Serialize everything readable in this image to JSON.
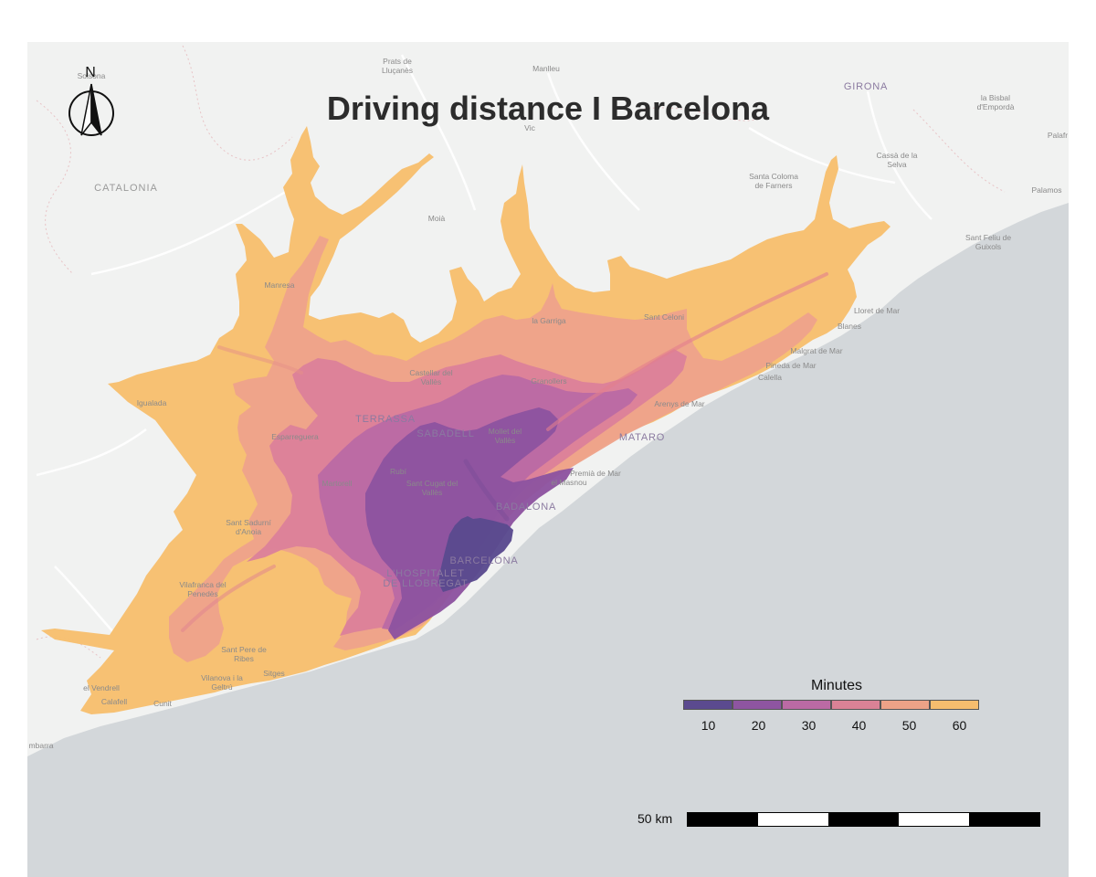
{
  "map": {
    "title": "Driving distance I Barcelona",
    "north_label": "N",
    "places": [
      {
        "name": "Solsona",
        "class": "small"
      },
      {
        "name": "Prats de",
        "class": "small"
      },
      {
        "name": "Lluçanès",
        "class": "small"
      },
      {
        "name": "Manlleu",
        "class": "small"
      },
      {
        "name": "Vic",
        "class": "small"
      },
      {
        "name": "GIRONA",
        "class": "city"
      },
      {
        "name": "la Bisbal",
        "class": "small"
      },
      {
        "name": "d'Empordà",
        "class": "small"
      },
      {
        "name": "Palafr",
        "class": "small"
      },
      {
        "name": "CATALONIA",
        "class": "region"
      },
      {
        "name": "Cassà de la",
        "class": "small"
      },
      {
        "name": "Selva",
        "class": "small"
      },
      {
        "name": "Santa Coloma",
        "class": "small"
      },
      {
        "name": "de Farners",
        "class": "small"
      },
      {
        "name": "Palamos",
        "class": "small"
      },
      {
        "name": "Moià",
        "class": "small"
      },
      {
        "name": "Sant Feliu de",
        "class": "small"
      },
      {
        "name": "Guixols",
        "class": "small"
      },
      {
        "name": "Manresa",
        "class": "small"
      },
      {
        "name": "Lloret de Mar",
        "class": "small"
      },
      {
        "name": "la Garriga",
        "class": "small"
      },
      {
        "name": "Sant Celoni",
        "class": "small"
      },
      {
        "name": "Blanes",
        "class": "small"
      },
      {
        "name": "Malgrat de Mar",
        "class": "small"
      },
      {
        "name": "Pineda de Mar",
        "class": "small"
      },
      {
        "name": "Calella",
        "class": "small"
      },
      {
        "name": "Castellar del",
        "class": "small"
      },
      {
        "name": "Vallès",
        "class": "small"
      },
      {
        "name": "Granollers",
        "class": "small"
      },
      {
        "name": "Igualada",
        "class": "small"
      },
      {
        "name": "Arenys de Mar",
        "class": "small"
      },
      {
        "name": "TERRASSA",
        "class": "city"
      },
      {
        "name": "SABADELL",
        "class": "city"
      },
      {
        "name": "Mollet del",
        "class": "small"
      },
      {
        "name": "Vallès",
        "class": "small"
      },
      {
        "name": "MATARO",
        "class": "city"
      },
      {
        "name": "Esparreguera",
        "class": "small"
      },
      {
        "name": "Rubí",
        "class": "small"
      },
      {
        "name": "Martorell",
        "class": "small"
      },
      {
        "name": "Sant Cugat del",
        "class": "small"
      },
      {
        "name": "Vallès",
        "class": "small"
      },
      {
        "name": "Premià de Mar",
        "class": "small"
      },
      {
        "name": "el Masnou",
        "class": "small"
      },
      {
        "name": "BADALONA",
        "class": "city"
      },
      {
        "name": "Sant Sadurní",
        "class": "small"
      },
      {
        "name": "d'Anoia",
        "class": "small"
      },
      {
        "name": "BARCELONA",
        "class": "city"
      },
      {
        "name": "L'HOSPITALET",
        "class": "city"
      },
      {
        "name": "DE LLOBREGAT",
        "class": "city"
      },
      {
        "name": "Vilafranca del",
        "class": "small"
      },
      {
        "name": "Penedès",
        "class": "small"
      },
      {
        "name": "Sant Pere de",
        "class": "small"
      },
      {
        "name": "Ribes",
        "class": "small"
      },
      {
        "name": "Vilanova i la",
        "class": "small"
      },
      {
        "name": "Geltrú",
        "class": "small"
      },
      {
        "name": "Sitges",
        "class": "small"
      },
      {
        "name": "el Vendrell",
        "class": "small"
      },
      {
        "name": "Calafell",
        "class": "small"
      },
      {
        "name": "Cunit",
        "class": "small"
      },
      {
        "name": "mbarra",
        "class": "small"
      }
    ],
    "colors": {
      "background": "#ffffff",
      "land": "#f1f2f1",
      "sea": "#d3d7da",
      "isochrones": [
        "#5a4a8e",
        "#8d54a0",
        "#bb6aa4",
        "#dc819a",
        "#eea38a",
        "#f7bf6e"
      ]
    }
  },
  "legend": {
    "title": "Minutes",
    "items": [
      {
        "label": "10",
        "color": "#5b4a8f"
      },
      {
        "label": "20",
        "color": "#8e55a1"
      },
      {
        "label": "30",
        "color": "#bb6aa4"
      },
      {
        "label": "40",
        "color": "#da8296"
      },
      {
        "label": "50",
        "color": "#eca287"
      },
      {
        "label": "60",
        "color": "#f6bd6e"
      }
    ]
  },
  "scalebar": {
    "label": "50 km",
    "segments": [
      "black",
      "white",
      "black",
      "white",
      "black"
    ]
  }
}
